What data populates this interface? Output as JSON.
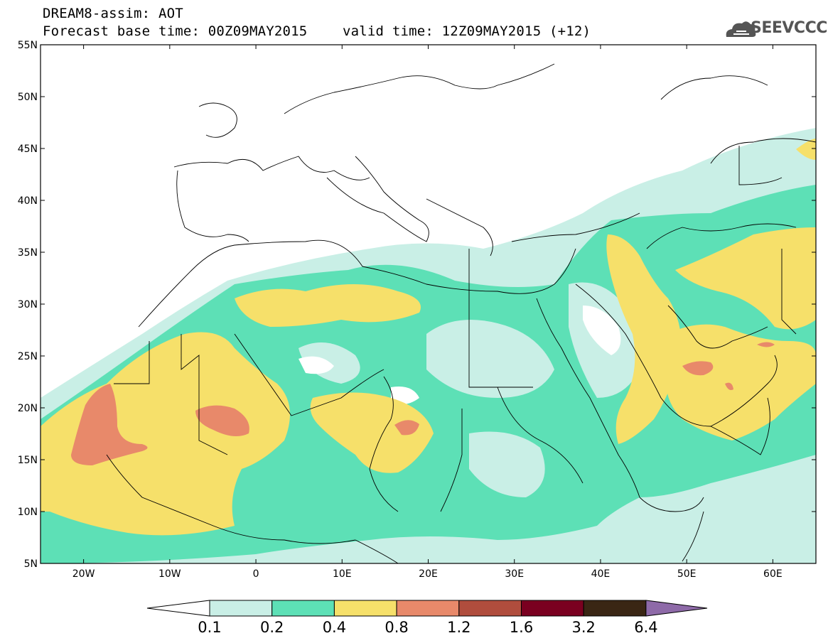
{
  "title": {
    "line1": "DREAM8-assim: AOT",
    "line2a": "Forecast base time: 00Z09MAY2015",
    "line2b": "valid time: 12Z09MAY2015 (+12)"
  },
  "logo": {
    "text": "SEEVCCC",
    "icon": "cloud-logo-icon"
  },
  "map": {
    "lon_range": [
      -25,
      65
    ],
    "lat_range": [
      5,
      55
    ],
    "lon_ticks": [
      {
        "value": -20,
        "label": "20W"
      },
      {
        "value": -10,
        "label": "10W"
      },
      {
        "value": 0,
        "label": "0"
      },
      {
        "value": 10,
        "label": "10E"
      },
      {
        "value": 20,
        "label": "20E"
      },
      {
        "value": 30,
        "label": "30E"
      },
      {
        "value": 40,
        "label": "40E"
      },
      {
        "value": 50,
        "label": "50E"
      },
      {
        "value": 60,
        "label": "60E"
      }
    ],
    "lat_ticks": [
      {
        "value": 55,
        "label": "55N"
      },
      {
        "value": 50,
        "label": "50N"
      },
      {
        "value": 45,
        "label": "45N"
      },
      {
        "value": 40,
        "label": "40N"
      },
      {
        "value": 35,
        "label": "35N"
      },
      {
        "value": 30,
        "label": "30N"
      },
      {
        "value": 25,
        "label": "25N"
      },
      {
        "value": 20,
        "label": "20N"
      },
      {
        "value": 15,
        "label": "15N"
      },
      {
        "value": 10,
        "label": "10N"
      },
      {
        "value": 5,
        "label": "5N"
      }
    ]
  },
  "colorbar": {
    "labels": [
      "0.1",
      "0.2",
      "0.4",
      "0.8",
      "1.2",
      "1.6",
      "3.2",
      "6.4"
    ],
    "colors": [
      "#ffffff",
      "#c9efe6",
      "#5de0b6",
      "#f6e06a",
      "#e8896a",
      "#b04d3d",
      "#7a0020",
      "#3a2614",
      "#8e6aa8"
    ]
  }
}
